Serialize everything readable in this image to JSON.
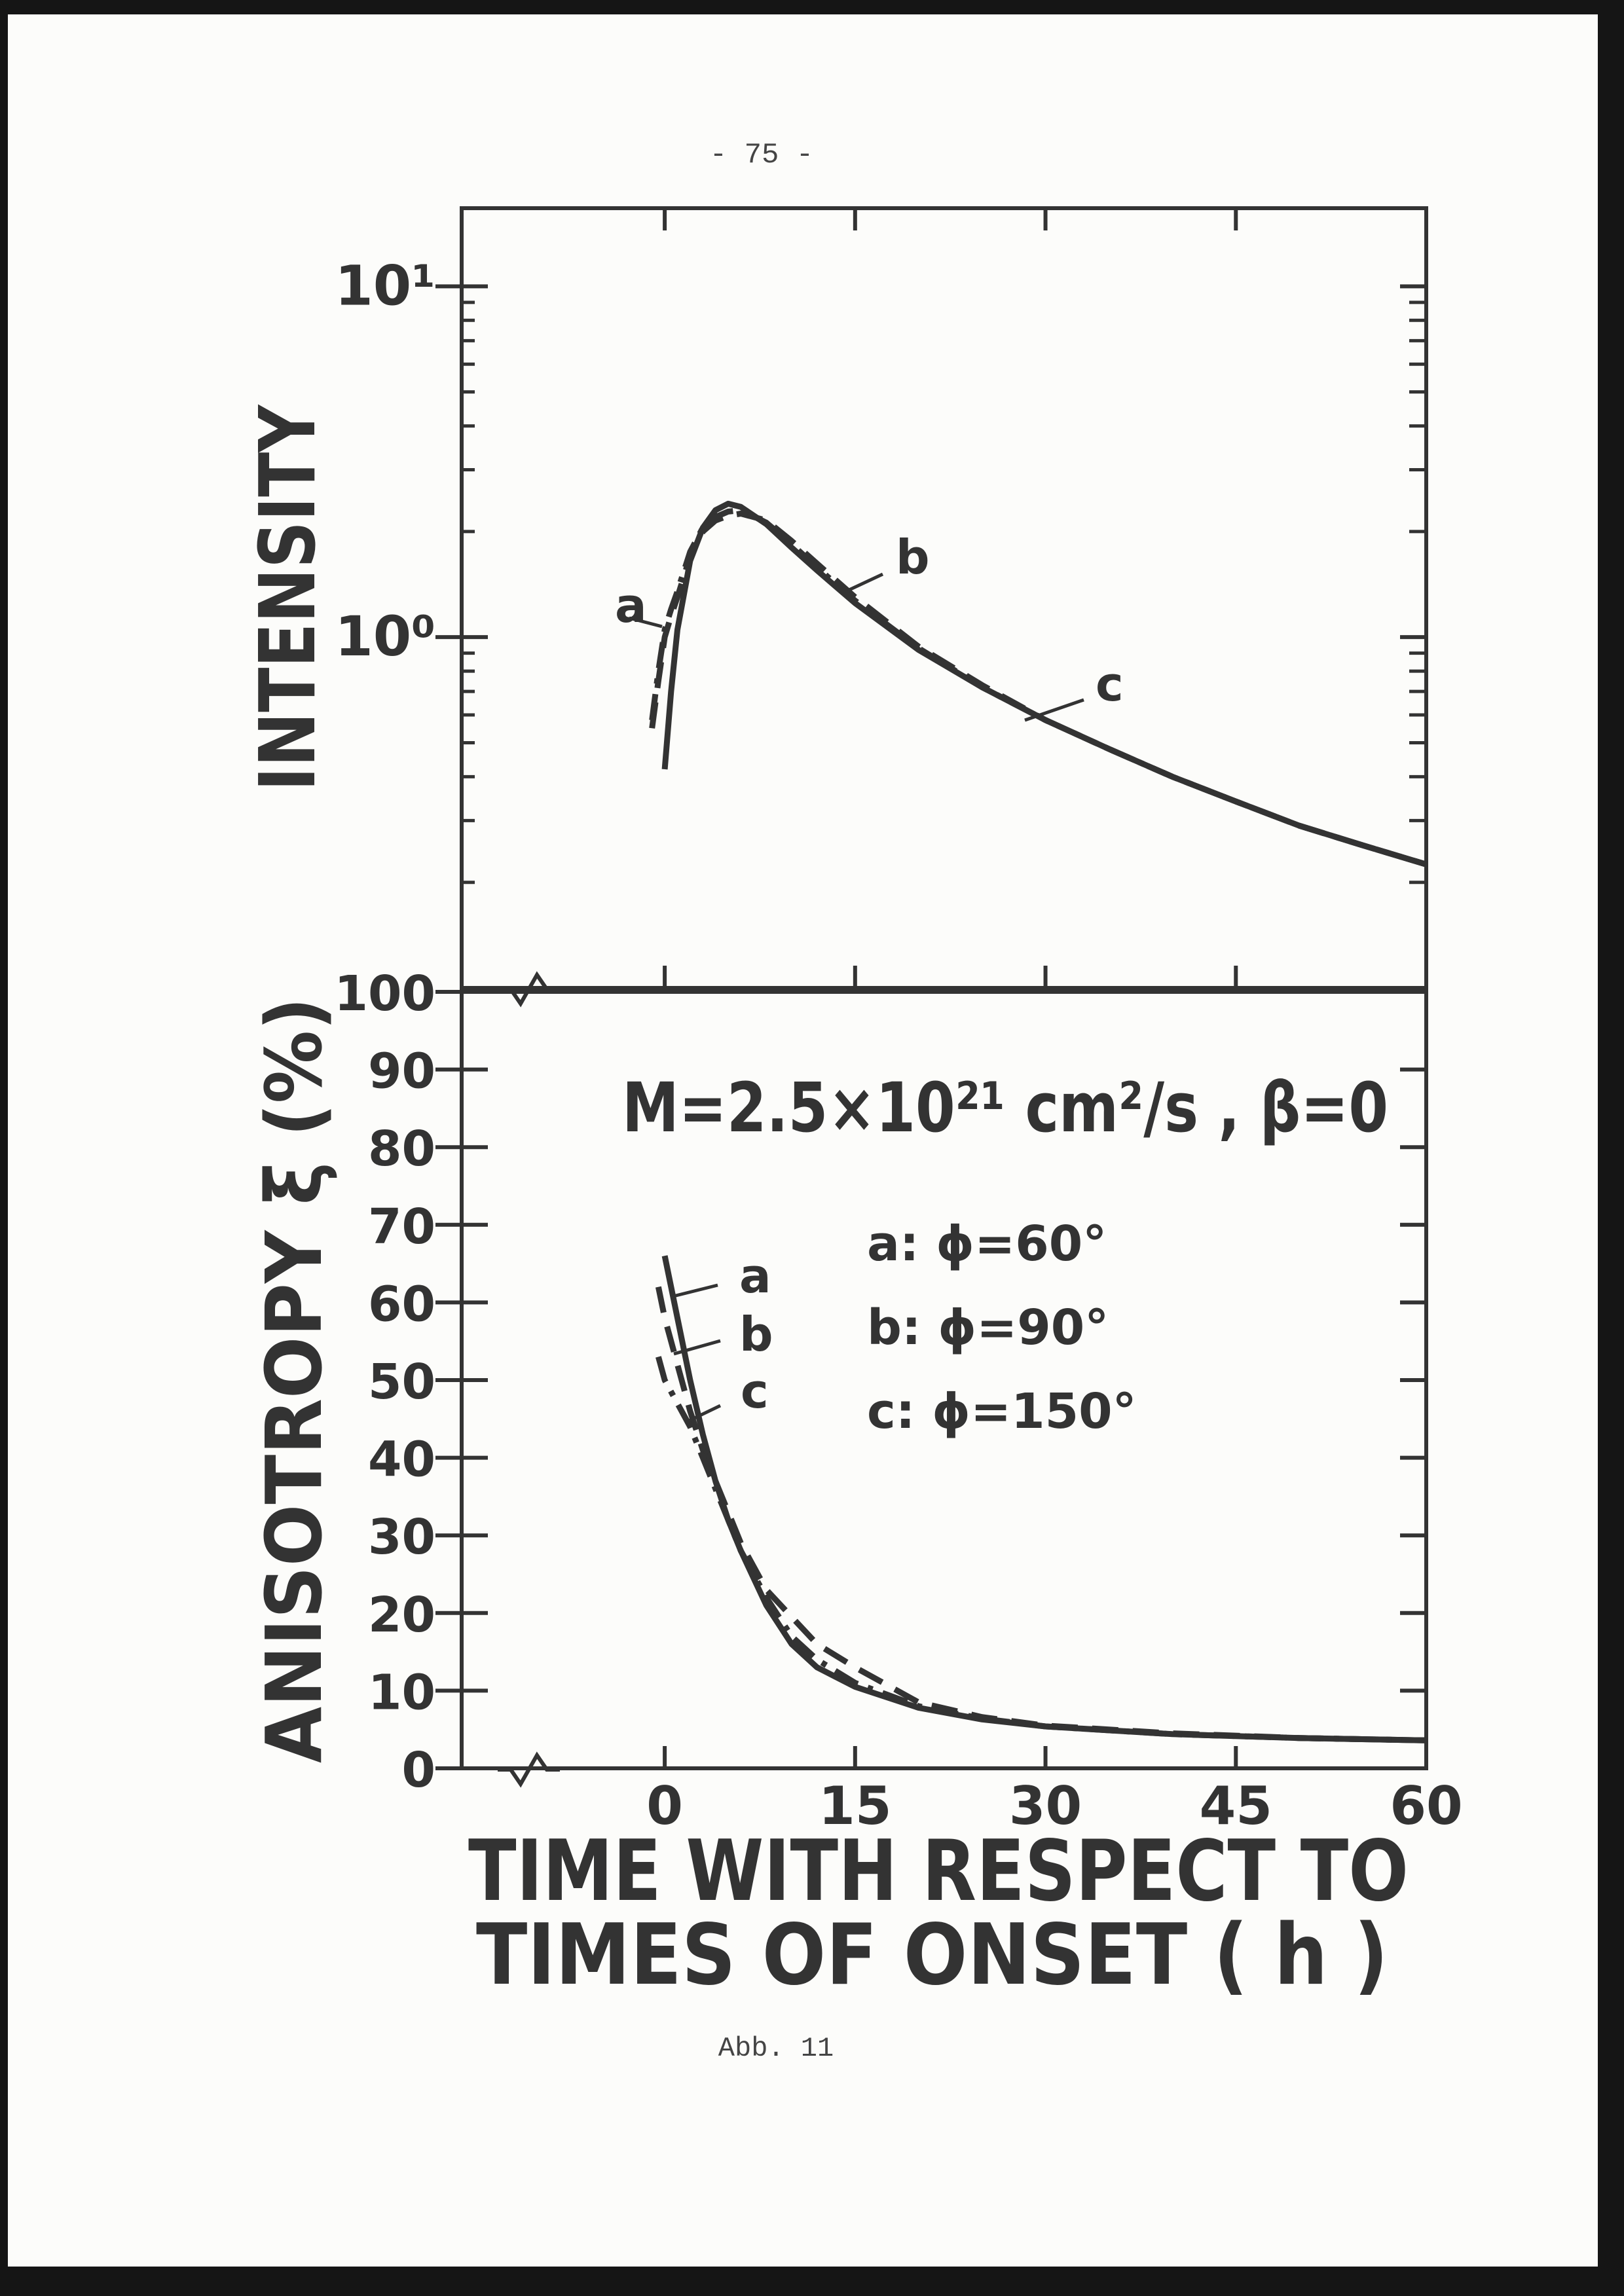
{
  "page_number": "- 75 -",
  "caption": "Abb. 11",
  "chart_data": [
    {
      "type": "line",
      "ylabel": "INTENSITY",
      "yscale": "log",
      "xlim": [
        -16,
        60
      ],
      "xticks": [
        0,
        15,
        30,
        45,
        60
      ],
      "ylim": [
        0.1,
        16.7
      ],
      "yticks": [
        {
          "value": 1,
          "label": "10⁰"
        },
        {
          "value": 10,
          "label": "10¹"
        }
      ],
      "yminorticks": [
        0.2,
        0.3,
        0.4,
        0.5,
        0.6,
        0.7,
        0.8,
        0.9,
        2,
        3,
        4,
        5,
        6,
        7,
        8,
        9
      ],
      "x": [
        -1,
        -0.5,
        0,
        0.5,
        1,
        2,
        3,
        4,
        5,
        6,
        8,
        10,
        12,
        15,
        20,
        25,
        30,
        35,
        40,
        45,
        50,
        55,
        60
      ],
      "series": [
        {
          "name": "a",
          "color": "#333333",
          "dash": "solid",
          "values": [
            null,
            null,
            0.42,
            0.7,
            1.05,
            1.65,
            2.05,
            2.3,
            2.4,
            2.35,
            2.1,
            1.8,
            1.55,
            1.25,
            0.92,
            0.72,
            0.58,
            0.48,
            0.4,
            0.34,
            0.29,
            0.255,
            0.225
          ]
        },
        {
          "name": "b",
          "color": "#333333",
          "dash": "dashed",
          "values": [
            0.55,
            0.75,
            1.0,
            1.15,
            1.3,
            1.7,
            2.0,
            2.15,
            2.22,
            2.25,
            2.15,
            1.88,
            1.62,
            1.3,
            0.94,
            0.73,
            0.58,
            0.48,
            0.4,
            0.34,
            0.29,
            0.255,
            0.225
          ]
        },
        {
          "name": "c",
          "color": "#333333",
          "dash": "dashdot",
          "values": [
            0.58,
            0.8,
            1.05,
            1.2,
            1.35,
            1.75,
            2.05,
            2.2,
            2.28,
            2.3,
            2.12,
            1.84,
            1.58,
            1.27,
            0.93,
            0.72,
            0.58,
            0.48,
            0.4,
            0.34,
            0.29,
            0.255,
            0.225
          ]
        }
      ]
    },
    {
      "type": "line",
      "ylabel": "ANISOTROPY ξ (%)",
      "xlabel": [
        "TIME WITH RESPECT TO",
        "TIMES OF ONSET ( h )"
      ],
      "annotation": "M=2.5×10²¹ cm²/s , β=0",
      "legend": [
        "a:  ϕ=60°",
        "b:  ϕ=90°",
        "c:  ϕ=150°"
      ],
      "xlim": [
        -16,
        60
      ],
      "xticks": [
        0,
        15,
        30,
        45,
        60
      ],
      "ylim": [
        0,
        100
      ],
      "yticks": [
        0,
        10,
        20,
        30,
        40,
        50,
        60,
        70,
        80,
        90,
        100
      ],
      "x": [
        -0.5,
        0,
        1,
        2,
        3,
        4,
        5,
        6,
        8,
        10,
        12,
        15,
        20,
        25,
        30,
        40,
        50,
        60
      ],
      "series": [
        {
          "name": "a",
          "color": "#333333",
          "dash": "solid",
          "values": [
            null,
            66,
            58,
            50,
            43,
            37,
            32,
            28,
            21,
            16,
            13,
            10.5,
            7.8,
            6.3,
            5.4,
            4.4,
            3.9,
            3.6
          ]
        },
        {
          "name": "b",
          "color": "#333333",
          "dash": "dashed",
          "values": [
            62,
            58,
            52,
            46,
            41,
            37,
            33,
            29,
            23,
            19.5,
            16,
            13,
            8.5,
            6.6,
            5.5,
            4.5,
            3.9,
            3.6
          ]
        },
        {
          "name": "c",
          "color": "#333333",
          "dash": "dashdot",
          "values": [
            53,
            50,
            47,
            44,
            40,
            36,
            32,
            28,
            22,
            17,
            14,
            11,
            8,
            6.4,
            5.4,
            4.4,
            3.9,
            3.6
          ]
        }
      ]
    }
  ]
}
